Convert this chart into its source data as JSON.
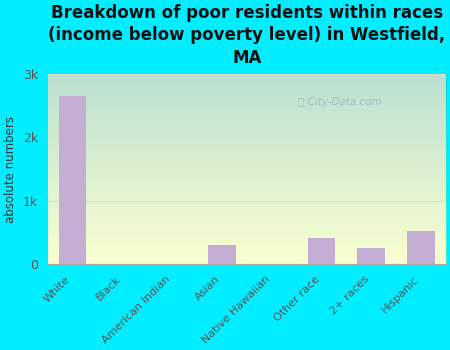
{
  "title": "Breakdown of poor residents within races\n(income below poverty level) in Westfield,\nMA",
  "categories": [
    "White",
    "Black",
    "American Indian",
    "Asian",
    "Native Hawaiian",
    "Other race",
    "2+ races",
    "Hispanic"
  ],
  "values": [
    2650,
    0,
    0,
    300,
    0,
    410,
    260,
    530
  ],
  "bar_color": "#c4aed4",
  "background_color": "#00eeff",
  "plot_bg_top": "#e8f5e0",
  "plot_bg_bottom": "#f8fff4",
  "ylabel": "absolute numbers",
  "ylim": [
    0,
    3000
  ],
  "yticks": [
    0,
    1000,
    2000,
    3000
  ],
  "ytick_labels": [
    "0",
    "1k",
    "2k",
    "3k"
  ],
  "watermark": "City-Data.com",
  "grid_color": "#ddddcc",
  "title_color": "#111111",
  "title_fontsize": 12,
  "tick_label_color": "#555555"
}
